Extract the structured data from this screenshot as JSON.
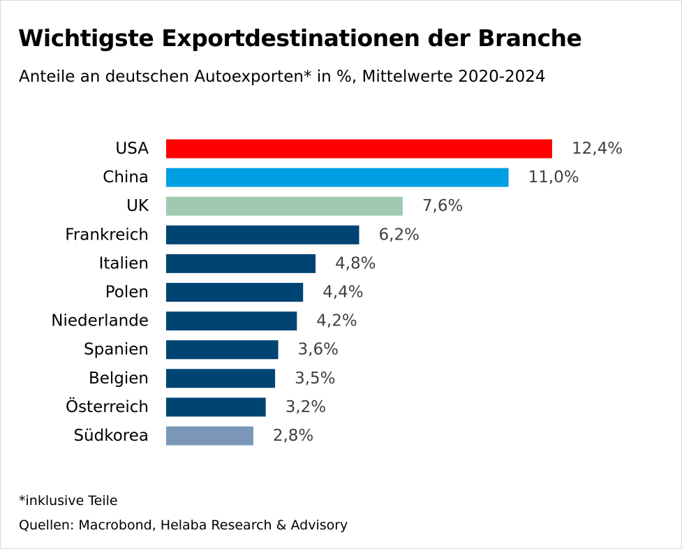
{
  "title": "Wichtigste Exportdestinationen der Branche",
  "subtitle": "Anteile an deutschen Autoexporten* in %, Mittelwerte 2020-2024",
  "footnote": "*inklusive Teile",
  "source": "Quellen: Macrobond, Helaba Research & Advisory",
  "chart_data": {
    "type": "bar",
    "orientation": "horizontal",
    "title": "Wichtigste Exportdestinationen der Branche",
    "subtitle": "Anteile an deutschen Autoexporten* in %, Mittelwerte 2020-2024",
    "xlabel": "",
    "ylabel": "",
    "xlim": [
      0,
      12.4
    ],
    "grid": false,
    "categories": [
      "USA",
      "China",
      "UK",
      "Frankreich",
      "Italien",
      "Polen",
      "Niederlande",
      "Spanien",
      "Belgien",
      "Österreich",
      "Südkorea"
    ],
    "values": [
      12.4,
      11.0,
      7.6,
      6.2,
      4.8,
      4.4,
      4.2,
      3.6,
      3.5,
      3.2,
      2.8
    ],
    "value_labels": [
      "12,4%",
      "11,0%",
      "7,6%",
      "6,2%",
      "4,8%",
      "4,4%",
      "4,2%",
      "3,6%",
      "3,5%",
      "3,2%",
      "2,8%"
    ],
    "colors": [
      "#ff0000",
      "#009fe3",
      "#a0cab0",
      "#004474",
      "#004474",
      "#004474",
      "#004474",
      "#004474",
      "#004474",
      "#004474",
      "#7a97b8"
    ]
  }
}
